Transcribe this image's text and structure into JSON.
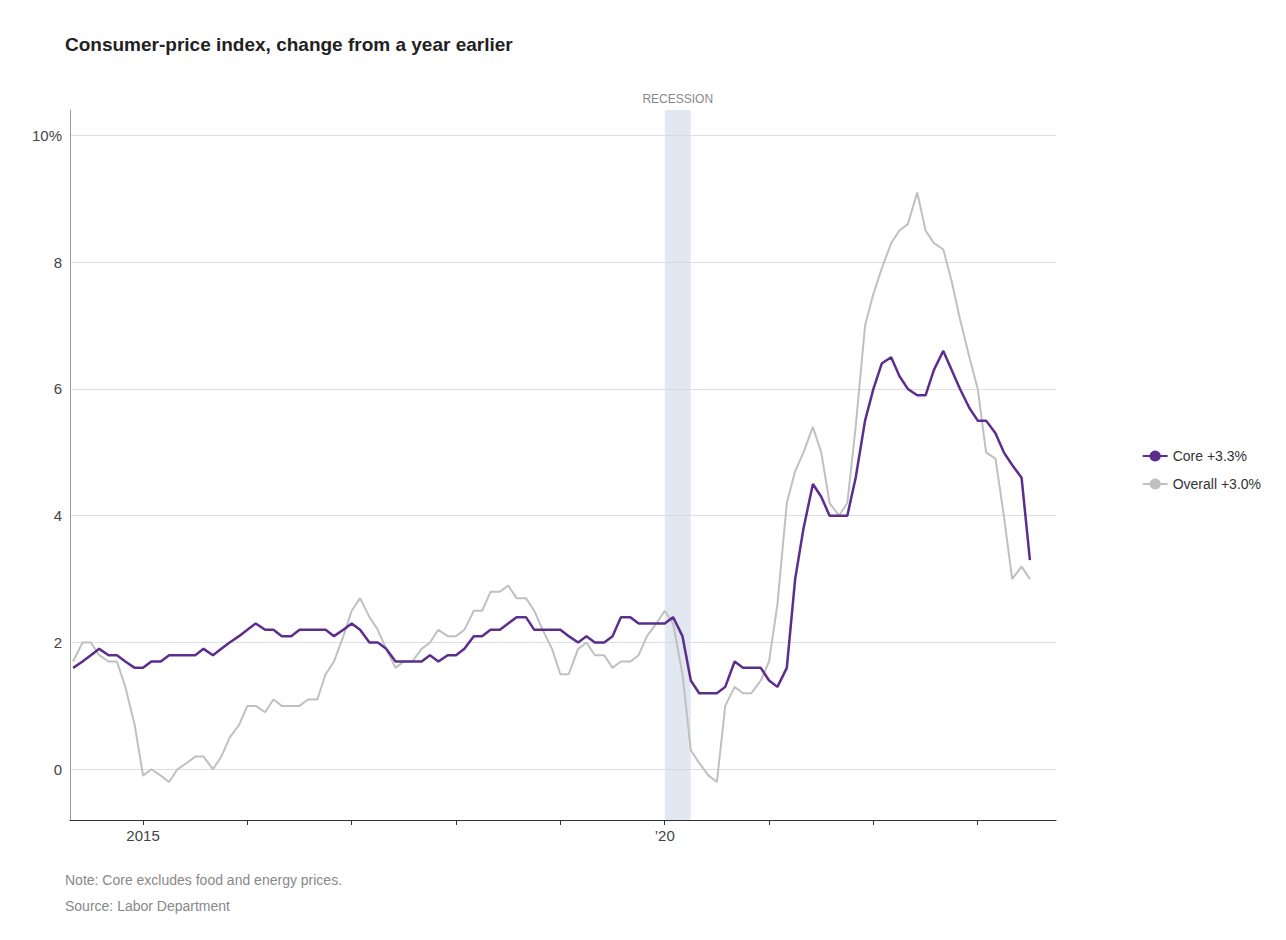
{
  "chart_data": {
    "type": "line",
    "title": "Consumer-price index, change from a year earlier",
    "note": "Note: Core excludes food and energy prices.",
    "source": "Source: Labor Department",
    "annotations": [
      {
        "text": "RECESSION",
        "x_start": 2020.0,
        "x_end": 2020.25
      }
    ],
    "xlim": [
      2014.3,
      2023.75
    ],
    "xticks": [
      2015,
      {
        "value": 2016,
        "label": null
      },
      {
        "value": 2017,
        "label": null
      },
      {
        "value": 2018,
        "label": null
      },
      {
        "value": 2019,
        "label": null
      },
      {
        "value": 2020,
        "label": "’20"
      },
      {
        "value": 2021,
        "label": null
      },
      {
        "value": 2022,
        "label": null
      },
      {
        "value": 2023,
        "label": null
      }
    ],
    "ylim": [
      -0.8,
      10.4
    ],
    "yticks": [
      0,
      2,
      4,
      6,
      8,
      {
        "value": 10,
        "label": "10%"
      }
    ],
    "grid": true,
    "legend": "right",
    "x": [
      2014.33,
      2014.42,
      2014.5,
      2014.58,
      2014.67,
      2014.75,
      2014.83,
      2014.92,
      2015.0,
      2015.08,
      2015.17,
      2015.25,
      2015.33,
      2015.42,
      2015.5,
      2015.58,
      2015.67,
      2015.75,
      2015.83,
      2015.92,
      2016.0,
      2016.08,
      2016.17,
      2016.25,
      2016.33,
      2016.42,
      2016.5,
      2016.58,
      2016.67,
      2016.75,
      2016.83,
      2016.92,
      2017.0,
      2017.08,
      2017.17,
      2017.25,
      2017.33,
      2017.42,
      2017.5,
      2017.58,
      2017.67,
      2017.75,
      2017.83,
      2017.92,
      2018.0,
      2018.08,
      2018.17,
      2018.25,
      2018.33,
      2018.42,
      2018.5,
      2018.58,
      2018.67,
      2018.75,
      2018.83,
      2018.92,
      2019.0,
      2019.08,
      2019.17,
      2019.25,
      2019.33,
      2019.42,
      2019.5,
      2019.58,
      2019.67,
      2019.75,
      2019.83,
      2019.92,
      2020.0,
      2020.08,
      2020.17,
      2020.25,
      2020.33,
      2020.42,
      2020.5,
      2020.58,
      2020.67,
      2020.75,
      2020.83,
      2020.92,
      2021.0,
      2021.08,
      2021.17,
      2021.25,
      2021.33,
      2021.42,
      2021.5,
      2021.58,
      2021.67,
      2021.75,
      2021.83,
      2021.92,
      2022.0,
      2022.08,
      2022.17,
      2022.25,
      2022.33,
      2022.42,
      2022.5,
      2022.58,
      2022.67,
      2022.75,
      2022.83,
      2022.92,
      2023.0,
      2023.08,
      2023.17,
      2023.25,
      2023.33,
      2023.42,
      2023.5
    ],
    "series": [
      {
        "name": "Core +3.3%",
        "color": "#5c2d8c",
        "values": [
          1.6,
          1.7,
          1.8,
          1.9,
          1.8,
          1.8,
          1.7,
          1.6,
          1.6,
          1.7,
          1.7,
          1.8,
          1.8,
          1.8,
          1.8,
          1.9,
          1.8,
          1.9,
          2.0,
          2.1,
          2.2,
          2.3,
          2.2,
          2.2,
          2.1,
          2.1,
          2.2,
          2.2,
          2.2,
          2.2,
          2.1,
          2.2,
          2.3,
          2.2,
          2.0,
          2.0,
          1.9,
          1.7,
          1.7,
          1.7,
          1.7,
          1.8,
          1.7,
          1.8,
          1.8,
          1.9,
          2.1,
          2.1,
          2.2,
          2.2,
          2.3,
          2.4,
          2.4,
          2.2,
          2.2,
          2.2,
          2.2,
          2.1,
          2.0,
          2.1,
          2.0,
          2.0,
          2.1,
          2.4,
          2.4,
          2.3,
          2.3,
          2.3,
          2.3,
          2.4,
          2.1,
          1.4,
          1.2,
          1.2,
          1.2,
          1.3,
          1.7,
          1.6,
          1.6,
          1.6,
          1.4,
          1.3,
          1.6,
          3.0,
          3.8,
          4.5,
          4.3,
          4.0,
          4.0,
          4.0,
          4.6,
          5.5,
          6.0,
          6.4,
          6.5,
          6.2,
          6.0,
          5.9,
          5.9,
          6.3,
          6.6,
          6.3,
          6.0,
          5.7,
          5.5,
          5.5,
          5.3,
          5.0,
          4.8,
          4.6,
          3.3
        ]
      },
      {
        "name": "Overall +3.0%",
        "color": "#c0c0c0",
        "values": [
          1.7,
          2.0,
          2.0,
          1.8,
          1.7,
          1.7,
          1.3,
          0.7,
          -0.1,
          0.0,
          -0.1,
          -0.2,
          0.0,
          0.1,
          0.2,
          0.2,
          0.0,
          0.2,
          0.5,
          0.7,
          1.0,
          1.0,
          0.9,
          1.1,
          1.0,
          1.0,
          1.0,
          1.1,
          1.1,
          1.5,
          1.7,
          2.1,
          2.5,
          2.7,
          2.4,
          2.2,
          1.9,
          1.6,
          1.7,
          1.7,
          1.9,
          2.0,
          2.2,
          2.1,
          2.1,
          2.2,
          2.5,
          2.5,
          2.8,
          2.8,
          2.9,
          2.7,
          2.7,
          2.5,
          2.2,
          1.9,
          1.5,
          1.5,
          1.9,
          2.0,
          1.8,
          1.8,
          1.6,
          1.7,
          1.7,
          1.8,
          2.1,
          2.3,
          2.5,
          2.3,
          1.5,
          0.3,
          0.1,
          -0.1,
          -0.2,
          1.0,
          1.3,
          1.2,
          1.2,
          1.4,
          1.7,
          2.6,
          4.2,
          4.7,
          5.0,
          5.4,
          5.0,
          4.2,
          4.0,
          4.2,
          5.4,
          7.0,
          7.5,
          7.9,
          8.3,
          8.5,
          8.6,
          9.1,
          8.5,
          8.3,
          8.2,
          7.7,
          7.1,
          6.5,
          6.0,
          5.0,
          4.9,
          4.0,
          3.0,
          3.2,
          3.0
        ]
      }
    ]
  }
}
